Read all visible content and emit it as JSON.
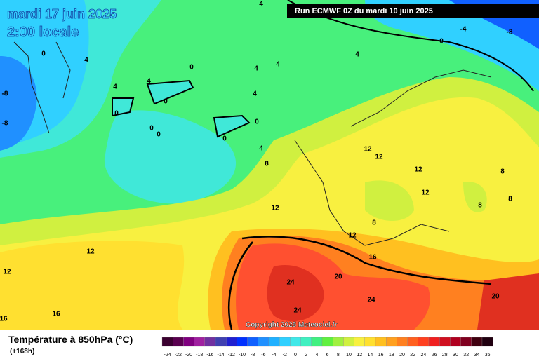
{
  "header": {
    "date": "mardi 17 juin 2025",
    "time": "2:00 locale",
    "run": "Run ECMWF 0Z du mardi 10 juin 2025",
    "copyright": "Copyright 2025 Meteociel.fr"
  },
  "legend": {
    "title": "Température à 850hPa (°C)",
    "subtitle": "(+168h)",
    "ticks": [
      -24,
      -22,
      -20,
      -18,
      -16,
      -14,
      -12,
      -10,
      -8,
      -6,
      -4,
      -2,
      0,
      2,
      4,
      6,
      8,
      10,
      12,
      14,
      16,
      18,
      20,
      22,
      24,
      26,
      28,
      30,
      32,
      34,
      36
    ],
    "colors": [
      "#3a0030",
      "#5a0050",
      "#800080",
      "#a020a0",
      "#7030a0",
      "#4040b0",
      "#2020d0",
      "#0030ff",
      "#1060ff",
      "#2090ff",
      "#20b0ff",
      "#30d0ff",
      "#40e8e8",
      "#40f0c0",
      "#40f080",
      "#60f040",
      "#a0f040",
      "#d0f040",
      "#f8f040",
      "#ffe030",
      "#ffc020",
      "#ffa020",
      "#ff8020",
      "#ff6020",
      "#ff4020",
      "#f02020",
      "#d01020",
      "#b00020",
      "#800020",
      "#400010",
      "#200010"
    ]
  },
  "map": {
    "contour_labels": [
      4,
      -4,
      -8,
      0,
      0,
      4,
      4,
      0,
      -8,
      -8,
      4,
      4,
      4,
      4,
      0,
      4,
      0,
      0,
      0,
      0,
      0,
      4,
      8,
      12,
      12,
      12,
      8,
      12,
      8,
      8,
      12,
      8,
      12,
      12,
      12,
      16,
      20,
      24,
      24,
      24,
      20,
      16,
      16
    ]
  }
}
